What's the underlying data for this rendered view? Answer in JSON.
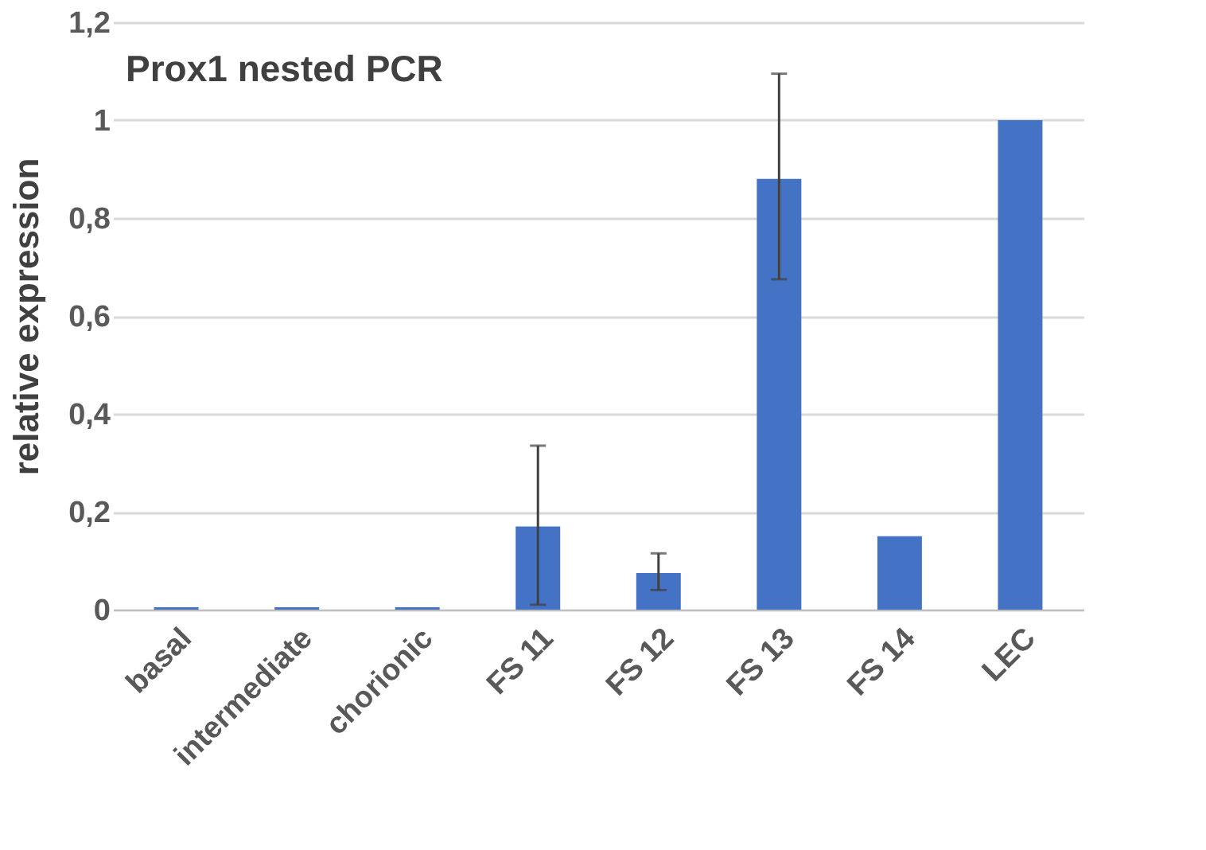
{
  "chart_data": {
    "type": "bar",
    "title": "Prox1 nested PCR",
    "ylabel": "relative expression",
    "categories": [
      "basal",
      "intermediate",
      "chorionic",
      "FS 11",
      "FS 12",
      "FS 13",
      "FS 14",
      "LEC"
    ],
    "values": [
      0.005,
      0.005,
      0.005,
      0.17,
      0.075,
      0.88,
      0.15,
      1
    ],
    "errors": [
      null,
      null,
      null,
      [
        0.01,
        0.335
      ],
      [
        0.04,
        0.115
      ],
      [
        0.675,
        1.095
      ],
      null,
      null
    ],
    "color": "#4472c4",
    "ylim": [
      0,
      1.2
    ],
    "yticks": [
      0,
      {
        "value": 0.2,
        "label": "0,2"
      },
      {
        "value": 0.4,
        "label": "0,4"
      },
      {
        "value": 0.6,
        "label": "0,6"
      },
      {
        "value": 0.8,
        "label": "0,8"
      },
      1,
      {
        "value": 1.2,
        "label": "1,2"
      }
    ],
    "grid": "y"
  }
}
